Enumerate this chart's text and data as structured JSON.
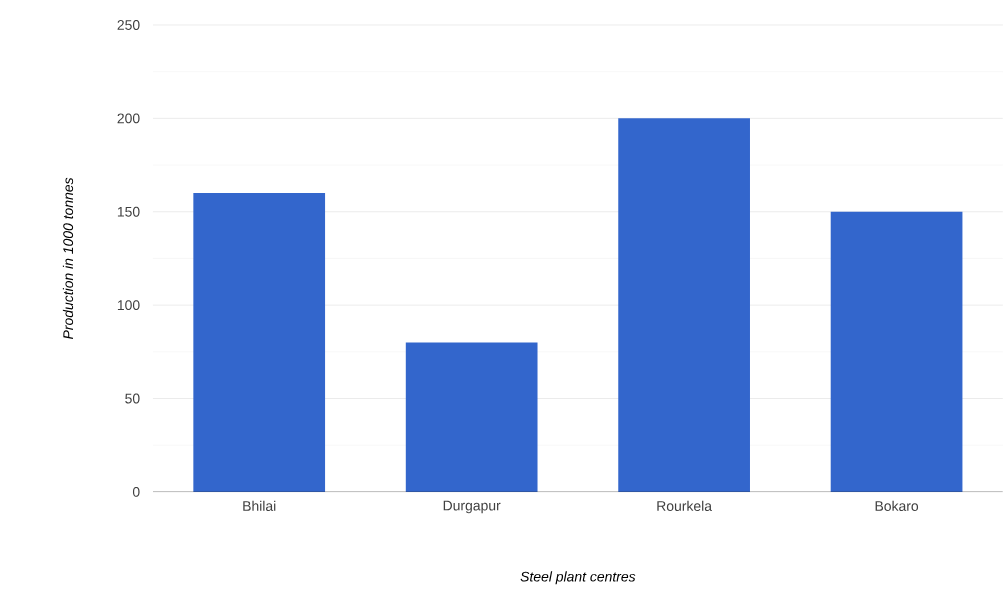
{
  "chart_data": {
    "type": "bar",
    "xlabel": "Steel plant centres",
    "ylabel": "Production in 1000 tonnes",
    "categories": [
      "Bhilai",
      "Durgapur",
      "Rourkela",
      "Bokaro"
    ],
    "values": [
      160,
      80,
      200,
      150
    ],
    "color": "#3366cc",
    "ylim": [
      0,
      250
    ],
    "yticks": [
      0,
      50,
      100,
      150,
      200,
      250
    ],
    "grid": "y"
  }
}
